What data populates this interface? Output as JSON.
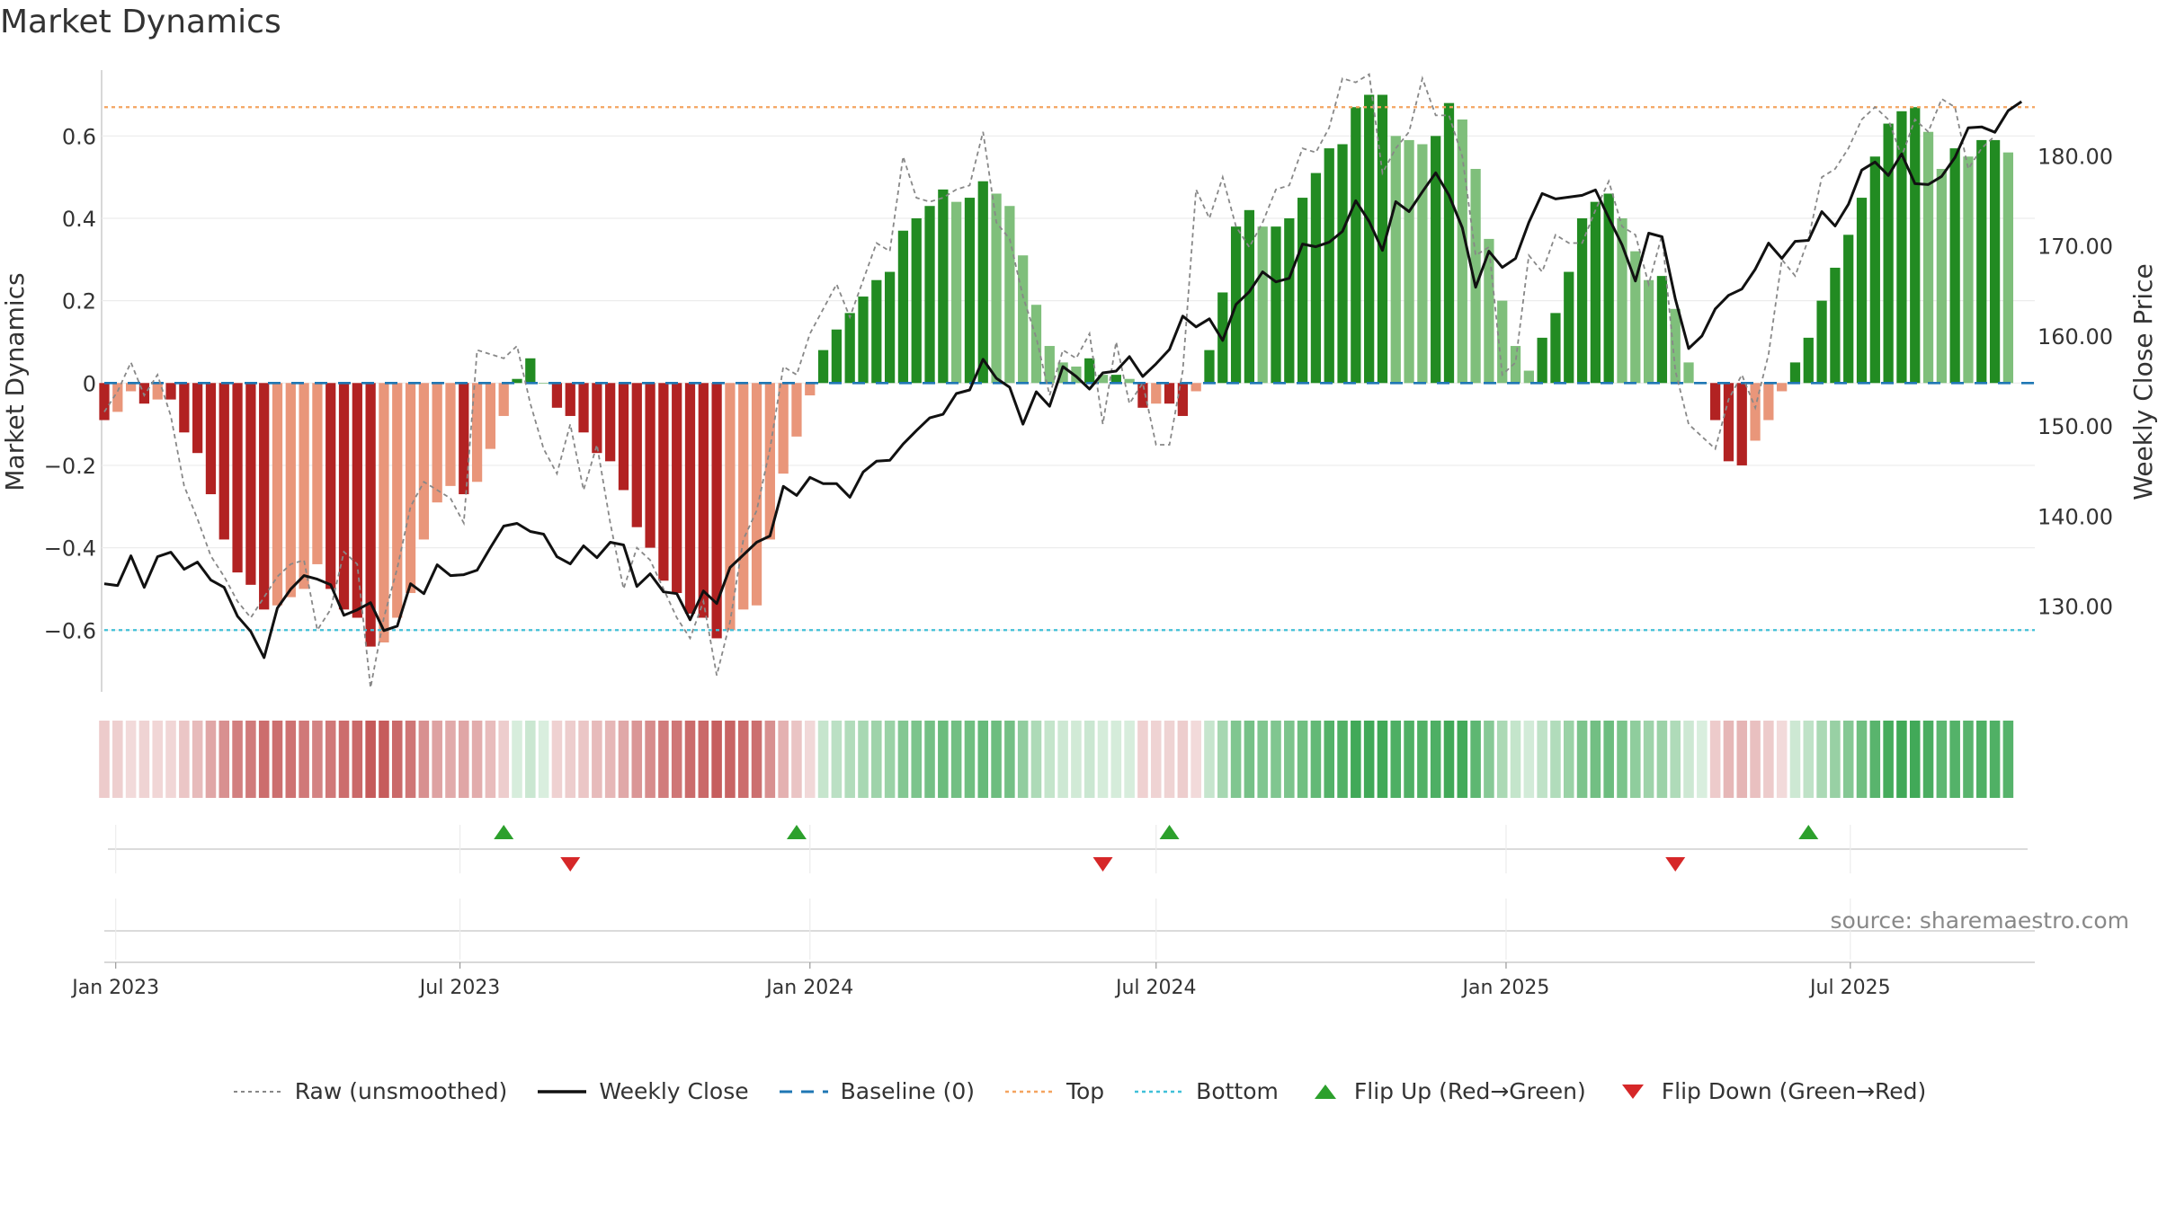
{
  "title": "Market Dynamics",
  "source_text": "source: sharemaestro.com",
  "colors": {
    "strong_red": "#b22222",
    "light_red": "#e9967a",
    "strong_green": "#228b22",
    "light_green": "#7fbf7b",
    "raw": "#888888",
    "close": "#111111",
    "baseline": "#1f77b4",
    "top": "#f4a460",
    "bottom": "#40c0d8",
    "flip_up": "#2ca02c",
    "flip_down": "#d62728"
  },
  "chart_data": {
    "type": "bar",
    "title": "Market Dynamics",
    "ylabel": "Market Dynamics",
    "y2label": "Weekly Close Price",
    "ylim": [
      -0.75,
      0.76
    ],
    "y2lim": [
      120.5,
      189.5
    ],
    "yticks": [
      "0.6",
      "0.4",
      "0.2",
      "0",
      "−0.2",
      "−0.4",
      "−0.6"
    ],
    "ytick_values": [
      0.6,
      0.4,
      0.2,
      0,
      -0.2,
      -0.4,
      -0.6
    ],
    "y2ticks": [
      "180.00",
      "170.00",
      "160.00",
      "150.00",
      "140.00",
      "130.00"
    ],
    "y2tick_values": [
      180,
      170,
      160,
      150,
      140,
      130
    ],
    "x_start": "2022-12-26",
    "x_end": "2025-10-06",
    "xtick_labels": [
      "Jan 2023",
      "Jul 2023",
      "Jan 2024",
      "Jul 2024",
      "Jan 2025",
      "Jul 2025"
    ],
    "xtick_dates": [
      "2023-01-01",
      "2023-07-01",
      "2024-01-01",
      "2024-07-01",
      "2025-01-01",
      "2025-07-01"
    ],
    "top_line": 0.67,
    "bottom_line": -0.6,
    "baseline": 0,
    "grid": true,
    "legend_position": "bottom-center",
    "series": [
      {
        "name": "Market Dynamics",
        "kind": "bar",
        "start": "2022-12-26",
        "interval_days": 7,
        "values": [
          -0.09,
          -0.07,
          -0.02,
          -0.05,
          -0.04,
          -0.04,
          -0.12,
          -0.17,
          -0.27,
          -0.38,
          -0.46,
          -0.49,
          -0.55,
          -0.54,
          -0.52,
          -0.5,
          -0.44,
          -0.5,
          -0.55,
          -0.57,
          -0.64,
          -0.63,
          -0.57,
          -0.51,
          -0.38,
          -0.29,
          -0.25,
          -0.27,
          -0.24,
          -0.16,
          -0.08,
          0.01,
          0.06,
          0.0,
          -0.06,
          -0.08,
          -0.12,
          -0.17,
          -0.19,
          -0.26,
          -0.35,
          -0.4,
          -0.48,
          -0.51,
          -0.56,
          -0.57,
          -0.62,
          -0.6,
          -0.55,
          -0.54,
          -0.38,
          -0.22,
          -0.13,
          -0.03,
          0.08,
          0.13,
          0.17,
          0.21,
          0.25,
          0.27,
          0.37,
          0.4,
          0.43,
          0.47,
          0.44,
          0.45,
          0.49,
          0.46,
          0.43,
          0.31,
          0.19,
          0.09,
          0.05,
          0.04,
          0.06,
          0.02,
          0.02,
          0.01,
          -0.06,
          -0.05,
          -0.05,
          -0.08,
          -0.02,
          0.08,
          0.22,
          0.38,
          0.42,
          0.38,
          0.38,
          0.4,
          0.45,
          0.51,
          0.57,
          0.58,
          0.67,
          0.7,
          0.7,
          0.6,
          0.59,
          0.58,
          0.6,
          0.68,
          0.64,
          0.52,
          0.35,
          0.2,
          0.09,
          0.03,
          0.11,
          0.17,
          0.27,
          0.4,
          0.44,
          0.46,
          0.4,
          0.32,
          0.25,
          0.26,
          0.18,
          0.05,
          0.0,
          -0.09,
          -0.19,
          -0.2,
          -0.14,
          -0.09,
          -0.02,
          0.05,
          0.11,
          0.2,
          0.28,
          0.36,
          0.45,
          0.55,
          0.63,
          0.66,
          0.67,
          0.61,
          0.52,
          0.57,
          0.55,
          0.59,
          0.59,
          0.56
        ]
      },
      {
        "name": "Raw (unsmoothed)",
        "kind": "line",
        "start": "2022-12-26",
        "interval_days": 7,
        "values": [
          -0.07,
          -0.02,
          0.05,
          -0.03,
          0.02,
          -0.08,
          -0.25,
          -0.33,
          -0.42,
          -0.47,
          -0.53,
          -0.57,
          -0.52,
          -0.47,
          -0.44,
          -0.43,
          -0.6,
          -0.55,
          -0.41,
          -0.44,
          -0.74,
          -0.57,
          -0.45,
          -0.3,
          -0.24,
          -0.26,
          -0.28,
          -0.34,
          0.08,
          0.07,
          0.06,
          0.09,
          -0.05,
          -0.16,
          -0.22,
          -0.1,
          -0.26,
          -0.15,
          -0.34,
          -0.5,
          -0.4,
          -0.43,
          -0.5,
          -0.57,
          -0.62,
          -0.53,
          -0.71,
          -0.58,
          -0.38,
          -0.31,
          -0.16,
          0.04,
          0.02,
          0.12,
          0.18,
          0.24,
          0.16,
          0.25,
          0.34,
          0.32,
          0.55,
          0.45,
          0.44,
          0.45,
          0.47,
          0.48,
          0.61,
          0.39,
          0.35,
          0.21,
          0.11,
          -0.03,
          0.08,
          0.06,
          0.12,
          -0.1,
          0.1,
          -0.05,
          0.0,
          -0.15,
          -0.15,
          0.03,
          0.47,
          0.4,
          0.5,
          0.38,
          0.33,
          0.39,
          0.47,
          0.48,
          0.57,
          0.56,
          0.62,
          0.74,
          0.73,
          0.75,
          0.51,
          0.57,
          0.61,
          0.74,
          0.65,
          0.65,
          0.55,
          0.31,
          0.33,
          0.02,
          0.05,
          0.31,
          0.27,
          0.36,
          0.34,
          0.34,
          0.42,
          0.49,
          0.38,
          0.36,
          0.24,
          0.36,
          0.03,
          -0.1,
          -0.13,
          -0.16,
          -0.04,
          0.02,
          -0.06,
          0.07,
          0.3,
          0.26,
          0.35,
          0.5,
          0.52,
          0.57,
          0.64,
          0.67,
          0.64,
          0.55,
          0.64,
          0.61,
          0.69,
          0.67,
          0.52,
          0.57,
          0.6
        ]
      },
      {
        "name": "Weekly Close",
        "kind": "line",
        "axis": "right",
        "start": "2022-12-26",
        "interval_days": 7,
        "values": [
          132.5,
          132.3,
          135.6,
          132.1,
          135.5,
          136.0,
          134.1,
          134.9,
          132.9,
          132.1,
          128.9,
          127.2,
          124.3,
          129.8,
          131.9,
          133.4,
          133.0,
          132.4,
          129.0,
          129.6,
          130.4,
          127.3,
          127.8,
          132.5,
          131.4,
          134.6,
          133.4,
          133.5,
          134.0,
          136.5,
          138.9,
          139.2,
          138.3,
          138.0,
          135.5,
          134.7,
          136.7,
          135.4,
          137.1,
          136.8,
          132.2,
          133.6,
          131.6,
          131.4,
          128.5,
          131.7,
          130.3,
          134.3,
          135.7,
          137.1,
          137.8,
          143.3,
          142.3,
          144.3,
          143.6,
          143.6,
          142.1,
          144.9,
          146.1,
          146.2,
          148.0,
          149.5,
          150.9,
          151.3,
          153.6,
          154.0,
          157.4,
          155.3,
          154.3,
          150.2,
          153.8,
          152.2,
          156.6,
          155.5,
          154.1,
          155.9,
          156.1,
          157.7,
          155.5,
          156.9,
          158.5,
          162.2,
          161.0,
          161.9,
          159.5,
          163.5,
          164.9,
          167.1,
          166.0,
          166.4,
          170.2,
          169.9,
          170.4,
          171.6,
          175.0,
          172.7,
          169.5,
          174.9,
          173.8,
          176.0,
          178.1,
          175.6,
          172.0,
          165.4,
          169.4,
          167.6,
          168.6,
          172.6,
          175.8,
          175.2,
          175.4,
          175.6,
          176.2,
          173.1,
          170.1,
          166.1,
          171.4,
          171.0,
          164.1,
          158.6,
          160.0,
          163.0,
          164.5,
          165.2,
          167.4,
          170.3,
          168.6,
          170.5,
          170.6,
          173.8,
          172.2,
          174.6,
          178.4,
          179.3,
          177.8,
          180.2,
          176.9,
          176.8,
          177.7,
          179.8,
          183.1,
          183.2,
          182.6,
          185.0,
          186.0
        ]
      }
    ],
    "flips_up": [
      "2023-07-24",
      "2023-12-25",
      "2024-07-08",
      "2025-06-09"
    ],
    "flips_down": [
      "2023-08-28",
      "2024-06-03",
      "2025-03-31"
    ],
    "color_strip": "categorical intensity strip; colors follow the bar regime"
  },
  "legend": [
    {
      "label": "Raw (unsmoothed)",
      "icon": "dotted-line"
    },
    {
      "label": "Weekly Close",
      "icon": "solid-line"
    },
    {
      "label": "Baseline (0)",
      "icon": "dashed-line"
    },
    {
      "label": "Top",
      "icon": "dotted-line"
    },
    {
      "label": "Bottom",
      "icon": "dotted-line"
    },
    {
      "label": "Flip Up (Red→Green)",
      "icon": "triangle-up"
    },
    {
      "label": "Flip Down (Green→Red)",
      "icon": "triangle-down"
    }
  ]
}
